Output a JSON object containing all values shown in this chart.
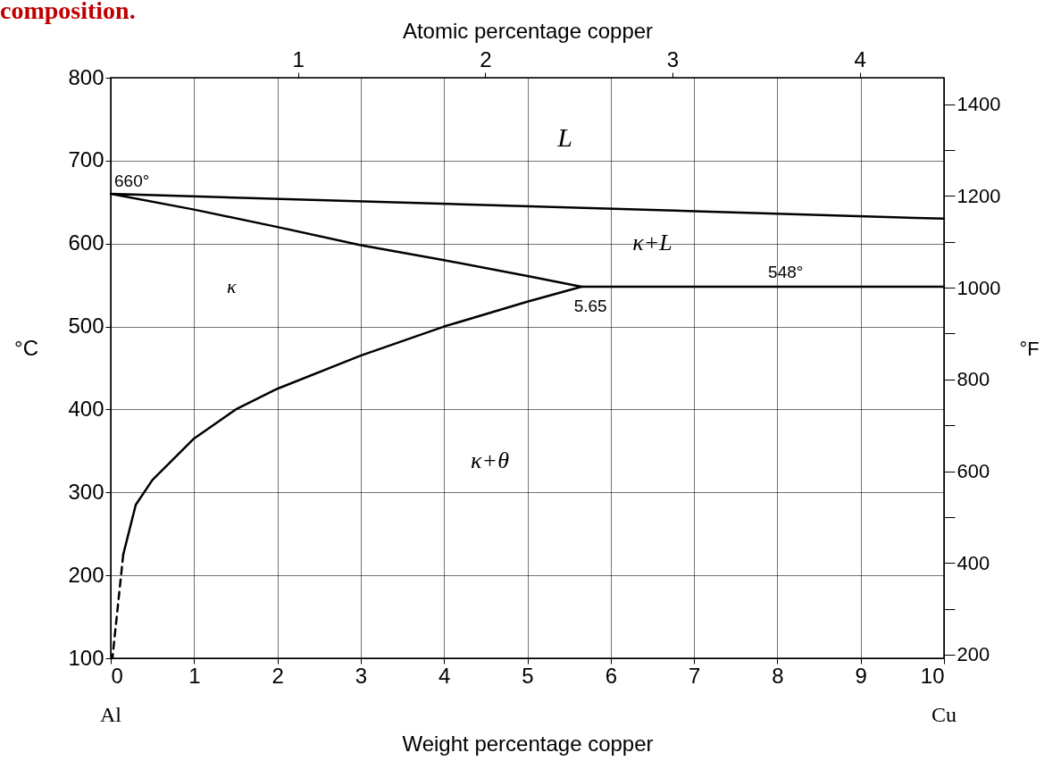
{
  "chart_data": {
    "type": "line",
    "title": "composition.",
    "xlabel": "Weight percentage copper",
    "ylabel": "°C",
    "y2label": "°F",
    "x2label": "Atomic percentage copper",
    "xlim": [
      0,
      10
    ],
    "xticks": [
      0,
      1,
      2,
      3,
      4,
      5,
      6,
      7,
      8,
      9,
      10
    ],
    "ylim": [
      100,
      800
    ],
    "yticks": [
      100,
      200,
      300,
      400,
      500,
      600,
      700,
      800
    ],
    "x2lim": [
      0,
      4.45
    ],
    "x2ticks": [
      1,
      2,
      3,
      4
    ],
    "y2lim": [
      192,
      1458
    ],
    "y2ticks": [
      200,
      {
        "value": 300,
        "label": null
      },
      400,
      {
        "value": 500,
        "label": null
      },
      600,
      {
        "value": 700,
        "label": null
      },
      800,
      {
        "value": 900,
        "label": null
      },
      1000,
      {
        "value": 1100,
        "label": null
      },
      1200,
      {
        "value": 1300,
        "label": null
      },
      1400
    ],
    "grid": true,
    "marker": "none",
    "series": [
      {
        "color": "#000000",
        "line_style": "solid",
        "x": [
          10,
          0,
          1,
          2,
          3,
          4,
          5,
          5.65,
          5,
          4,
          3,
          2,
          1.5,
          1,
          0.5,
          0.3,
          0.15
        ],
        "values": [
          630,
          660,
          641,
          620,
          598,
          580,
          561,
          548,
          530,
          500,
          465,
          425,
          400,
          365,
          315,
          285,
          225
        ]
      },
      {
        "color": "#000000",
        "line_style": "solid",
        "x": [
          5.65,
          10
        ],
        "values": [
          548,
          548
        ]
      },
      {
        "color": "#000000",
        "line_style": "dashed",
        "x": [
          0.15,
          0.02
        ],
        "values": [
          225,
          100
        ]
      }
    ],
    "annotations": [
      {
        "text": "660°",
        "x": 0,
        "y": 660
      },
      {
        "text": "548°",
        "x": 8.1,
        "y": 548
      },
      {
        "text": "5.65",
        "x": 5.65,
        "y": 548
      },
      "L",
      "κ+L",
      "κ",
      "κ+θ",
      "Al",
      "Cu"
    ]
  }
}
